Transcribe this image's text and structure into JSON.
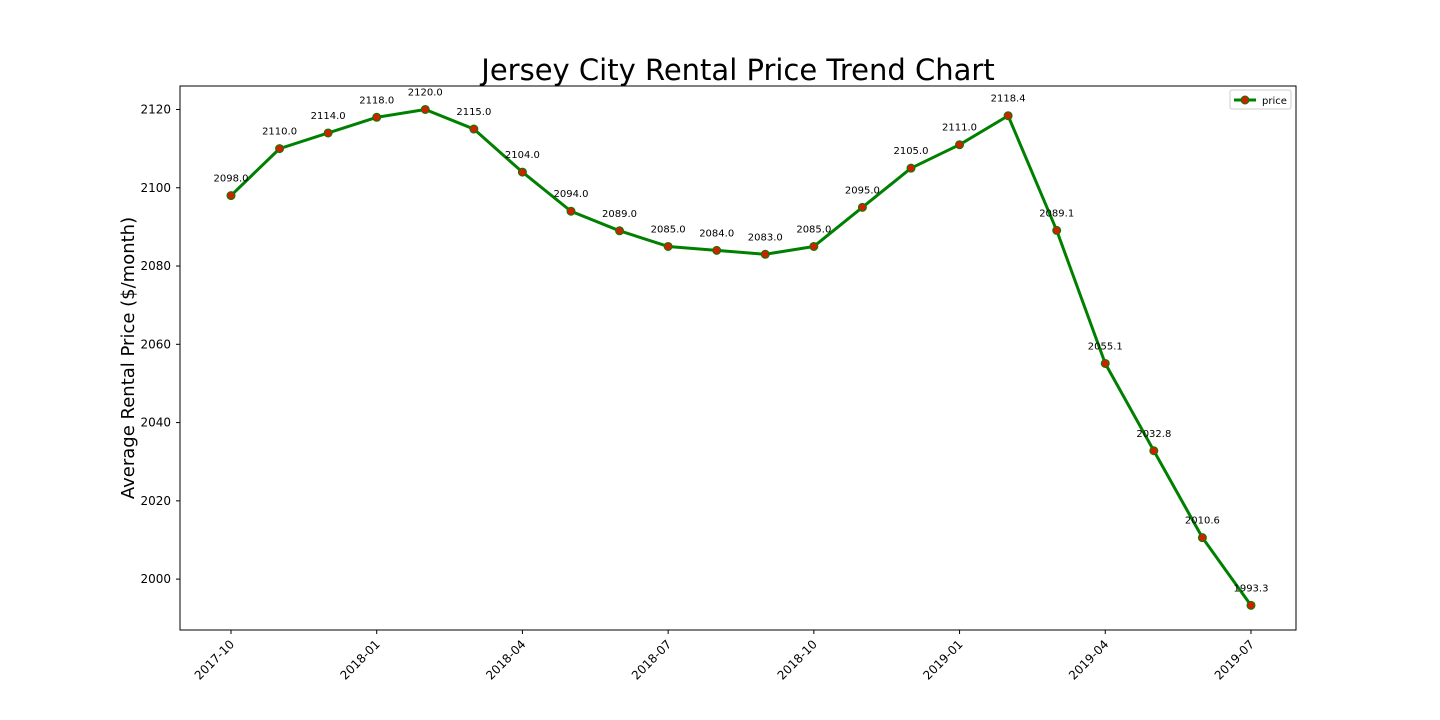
{
  "chart_data": {
    "type": "line",
    "title": "Jersey City Rental Price Trend Chart",
    "xlabel": "",
    "ylabel": "Average Rental Price ($/month)",
    "x": [
      "2017-10",
      "2017-11",
      "2017-12",
      "2018-01",
      "2018-02",
      "2018-03",
      "2018-04",
      "2018-05",
      "2018-06",
      "2018-07",
      "2018-08",
      "2018-09",
      "2018-10",
      "2018-11",
      "2018-12",
      "2019-01",
      "2019-02",
      "2019-03",
      "2019-04",
      "2019-05",
      "2019-06",
      "2019-07"
    ],
    "x_ticks": [
      "2017-10",
      "2018-01",
      "2018-04",
      "2018-07",
      "2018-10",
      "2019-01",
      "2019-04",
      "2019-07"
    ],
    "series": [
      {
        "name": "price",
        "values": [
          2098.0,
          2110.0,
          2114.0,
          2118.0,
          2120.0,
          2115.0,
          2104.0,
          2094.0,
          2089.0,
          2085.0,
          2084.0,
          2083.0,
          2085.0,
          2095.0,
          2105.0,
          2111.0,
          2118.4,
          2089.1,
          2055.1,
          2032.8,
          2010.6,
          1993.3
        ],
        "labels": [
          "2098.0",
          "2110.0",
          "2114.0",
          "2118.0",
          "2120.0",
          "2115.0",
          "2104.0",
          "2094.0",
          "2089.0",
          "2085.0",
          "2084.0",
          "2083.0",
          "2085.0",
          "2095.0",
          "2105.0",
          "2111.0",
          "2118.4",
          "2089.1",
          "2055.1",
          "2032.8",
          "2010.6",
          "1993.3"
        ]
      }
    ],
    "y_ticks": [
      2000,
      2020,
      2040,
      2060,
      2080,
      2100,
      2120
    ],
    "ylim": [
      1987,
      2126
    ],
    "grid": false,
    "legend_position": "top-right",
    "colors": {
      "line": "#008000",
      "marker_fill": "#cc2200",
      "axis": "#000000"
    }
  }
}
